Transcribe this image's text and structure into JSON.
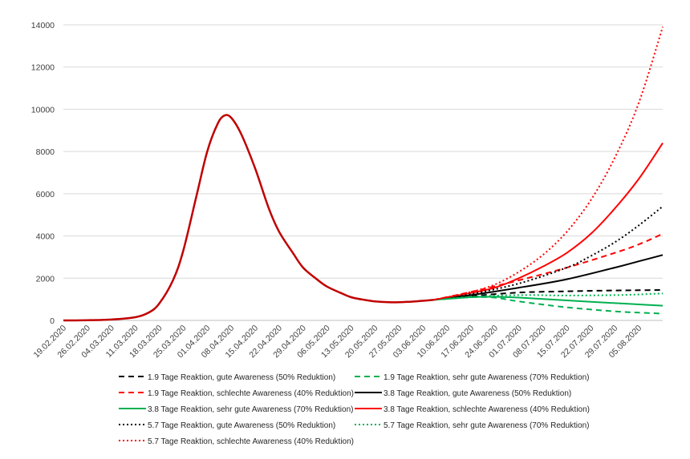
{
  "chart_data": {
    "type": "line",
    "title": "",
    "xlabel": "",
    "ylabel": "",
    "ylim": [
      0,
      14000
    ],
    "yticks": [
      0,
      2000,
      4000,
      6000,
      8000,
      10000,
      12000,
      14000
    ],
    "ytick_labels": [
      "0",
      "2000",
      "4000",
      "6000",
      "8000",
      "10000",
      "12000",
      "14000"
    ],
    "grid": "horizontal",
    "legend_position": "bottom",
    "x_tick_labels": [
      "19.02.2020",
      "26.02.2020",
      "04.03.2020",
      "11.03.2020",
      "18.03.2020",
      "25.03.2020",
      "01.04.2020",
      "08.04.2020",
      "15.04.2020",
      "22.04.2020",
      "29.04.2020",
      "06.05.2020",
      "13.05.2020",
      "20.05.2020",
      "27.05.2020",
      "03.06.2020",
      "10.06.2020",
      "17.06.2020",
      "24.06.2020",
      "01.07.2020",
      "08.07.2020",
      "15.07.2020",
      "22.07.2020",
      "29.07.2020",
      "05.08.2020"
    ],
    "x_start": "19.02.2020",
    "x_end": "12.08.2020",
    "history": {
      "color": "#c00000",
      "points": [
        [
          "19.02.2020",
          0
        ],
        [
          "26.02.2020",
          10
        ],
        [
          "04.03.2020",
          40
        ],
        [
          "11.03.2020",
          150
        ],
        [
          "15.03.2020",
          380
        ],
        [
          "18.03.2020",
          800
        ],
        [
          "22.03.2020",
          1900
        ],
        [
          "25.03.2020",
          3300
        ],
        [
          "29.03.2020",
          6000
        ],
        [
          "01.04.2020",
          8000
        ],
        [
          "04.04.2020",
          9300
        ],
        [
          "06.04.2020",
          9700
        ],
        [
          "08.04.2020",
          9600
        ],
        [
          "11.04.2020",
          8800
        ],
        [
          "15.04.2020",
          7200
        ],
        [
          "19.04.2020",
          5300
        ],
        [
          "22.04.2020",
          4200
        ],
        [
          "26.04.2020",
          3200
        ],
        [
          "29.04.2020",
          2500
        ],
        [
          "03.05.2020",
          1950
        ],
        [
          "06.05.2020",
          1600
        ],
        [
          "10.05.2020",
          1300
        ],
        [
          "13.05.2020",
          1100
        ],
        [
          "17.05.2020",
          970
        ],
        [
          "20.05.2020",
          900
        ],
        [
          "24.05.2020",
          860
        ],
        [
          "27.05.2020",
          860
        ],
        [
          "31.05.2020",
          890
        ],
        [
          "03.06.2020",
          930
        ],
        [
          "06.06.2020",
          970
        ]
      ]
    },
    "series": [
      {
        "name": "1.9 Tage Reaktion, gute Awareness (50% Reduktion)",
        "color": "#000000",
        "dash": "dashed",
        "points": [
          [
            "06.06.2020",
            970
          ],
          [
            "17.06.2020",
            1150
          ],
          [
            "01.07.2020",
            1320
          ],
          [
            "15.07.2020",
            1380
          ],
          [
            "29.07.2020",
            1420
          ],
          [
            "05.08.2020",
            1430
          ],
          [
            "12.08.2020",
            1440
          ]
        ]
      },
      {
        "name": "1.9 Tage Reaktion, sehr gute Awareness (70% Reduktion)",
        "color": "#00b050",
        "dash": "dashed",
        "points": [
          [
            "06.06.2020",
            970
          ],
          [
            "17.06.2020",
            1100
          ],
          [
            "24.06.2020",
            1080
          ],
          [
            "01.07.2020",
            900
          ],
          [
            "15.07.2020",
            620
          ],
          [
            "29.07.2020",
            430
          ],
          [
            "05.08.2020",
            370
          ],
          [
            "12.08.2020",
            320
          ]
        ]
      },
      {
        "name": "1.9 Tage Reaktion,  schlechte Awareness (40% Reduktion)",
        "color": "#ff0000",
        "dash": "dashed",
        "points": [
          [
            "06.06.2020",
            970
          ],
          [
            "17.06.2020",
            1350
          ],
          [
            "01.07.2020",
            1900
          ],
          [
            "15.07.2020",
            2500
          ],
          [
            "29.07.2020",
            3200
          ],
          [
            "05.08.2020",
            3600
          ],
          [
            "12.08.2020",
            4100
          ]
        ]
      },
      {
        "name": "3.8 Tage Reaktion, gute Awareness (50% Reduktion)",
        "color": "#000000",
        "dash": "solid",
        "points": [
          [
            "06.06.2020",
            970
          ],
          [
            "17.06.2020",
            1200
          ],
          [
            "01.07.2020",
            1550
          ],
          [
            "15.07.2020",
            1950
          ],
          [
            "29.07.2020",
            2500
          ],
          [
            "05.08.2020",
            2800
          ],
          [
            "12.08.2020",
            3100
          ]
        ]
      },
      {
        "name": "3.8 Tage Reaktion, sehr gute Awareness (70% Reduktion)",
        "color": "#00b050",
        "dash": "solid",
        "points": [
          [
            "06.06.2020",
            970
          ],
          [
            "17.06.2020",
            1100
          ],
          [
            "24.06.2020",
            1120
          ],
          [
            "01.07.2020",
            1080
          ],
          [
            "15.07.2020",
            950
          ],
          [
            "29.07.2020",
            820
          ],
          [
            "05.08.2020",
            760
          ],
          [
            "12.08.2020",
            700
          ]
        ]
      },
      {
        "name": "3.8 Tage Reaktion, schlechte Awareness (40% Reduktion)",
        "color": "#ff0000",
        "dash": "solid",
        "points": [
          [
            "06.06.2020",
            970
          ],
          [
            "17.06.2020",
            1300
          ],
          [
            "24.06.2020",
            1550
          ],
          [
            "01.07.2020",
            2000
          ],
          [
            "08.07.2020",
            2550
          ],
          [
            "15.07.2020",
            3200
          ],
          [
            "22.07.2020",
            4100
          ],
          [
            "29.07.2020",
            5300
          ],
          [
            "05.08.2020",
            6700
          ],
          [
            "12.08.2020",
            8400
          ]
        ]
      },
      {
        "name": "5.7 Tage Reaktion, gute Awareness (50% Reduktion)",
        "color": "#000000",
        "dash": "dotted",
        "points": [
          [
            "06.06.2020",
            970
          ],
          [
            "17.06.2020",
            1250
          ],
          [
            "01.07.2020",
            1750
          ],
          [
            "15.07.2020",
            2500
          ],
          [
            "22.07.2020",
            3050
          ],
          [
            "29.07.2020",
            3700
          ],
          [
            "05.08.2020",
            4500
          ],
          [
            "12.08.2020",
            5400
          ]
        ]
      },
      {
        "name": "5.7 Tage Reaktion, sehr gute Awareness (70% Reduktion)",
        "color": "#00b050",
        "dash": "dotted",
        "points": [
          [
            "06.06.2020",
            970
          ],
          [
            "17.06.2020",
            1120
          ],
          [
            "01.07.2020",
            1200
          ],
          [
            "15.07.2020",
            1180
          ],
          [
            "29.07.2020",
            1200
          ],
          [
            "05.08.2020",
            1230
          ],
          [
            "12.08.2020",
            1280
          ]
        ]
      },
      {
        "name": "5.7 Tage Reaktion, schlechte Awareness (40% Reduktion)",
        "color": "#ff0000",
        "dash": "dotted",
        "points": [
          [
            "06.06.2020",
            970
          ],
          [
            "17.06.2020",
            1350
          ],
          [
            "24.06.2020",
            1700
          ],
          [
            "01.07.2020",
            2300
          ],
          [
            "08.07.2020",
            3100
          ],
          [
            "15.07.2020",
            4200
          ],
          [
            "22.07.2020",
            5700
          ],
          [
            "29.07.2020",
            7700
          ],
          [
            "05.08.2020",
            10300
          ],
          [
            "12.08.2020",
            13900
          ]
        ]
      }
    ]
  }
}
